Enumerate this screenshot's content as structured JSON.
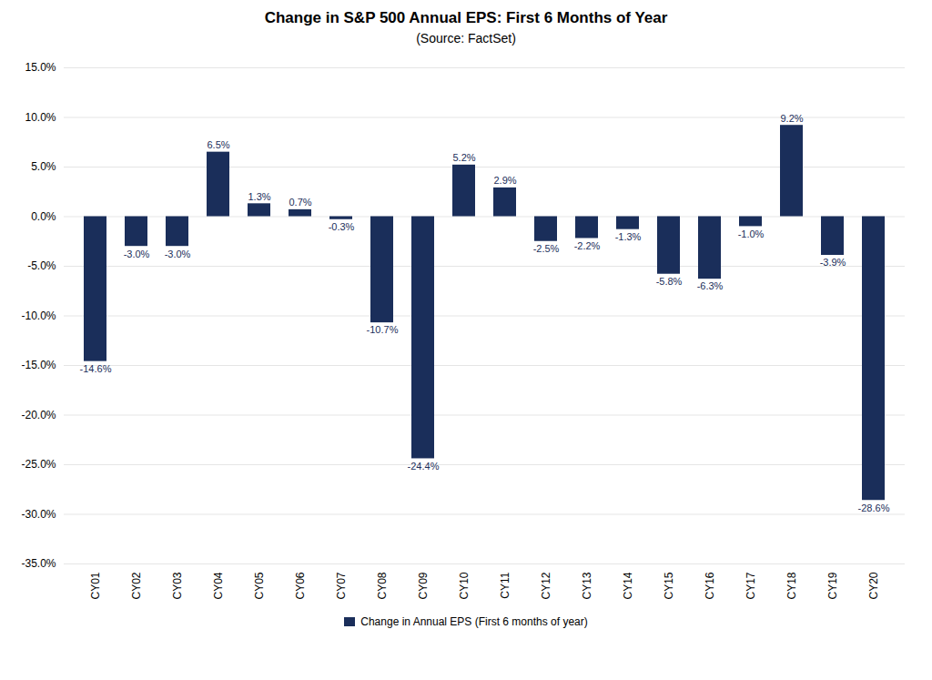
{
  "chart_data": {
    "type": "bar",
    "title": "Change in S&P 500 Annual EPS: First 6 Months of Year",
    "subtitle": "(Source: FactSet)",
    "categories": [
      "CY01",
      "CY02",
      "CY03",
      "CY04",
      "CY05",
      "CY06",
      "CY07",
      "CY08",
      "CY09",
      "CY10",
      "CY11",
      "CY12",
      "CY13",
      "CY14",
      "CY15",
      "CY16",
      "CY17",
      "CY18",
      "CY19",
      "CY20"
    ],
    "series": [
      {
        "name": "Change in Annual EPS (First 6 months of year)",
        "color": "#1a2e5a",
        "values": [
          -14.6,
          -3.0,
          -3.0,
          6.5,
          1.3,
          0.7,
          -0.3,
          -10.7,
          -24.4,
          5.2,
          2.9,
          -2.5,
          -2.2,
          -1.3,
          -5.8,
          -6.3,
          -1.0,
          9.2,
          -3.9,
          -28.6
        ],
        "value_labels": [
          "-14.6%",
          "-3.0%",
          "-3.0%",
          "6.5%",
          "1.3%",
          "0.7%",
          "-0.3%",
          "-10.7%",
          "-24.4%",
          "5.2%",
          "2.9%",
          "-2.5%",
          "-2.2%",
          "-1.3%",
          "-5.8%",
          "-6.3%",
          "-1.0%",
          "9.2%",
          "-3.9%",
          "-28.6%"
        ]
      }
    ],
    "ylim": [
      -35,
      15
    ],
    "yticks": [
      {
        "value": -35,
        "label": "-35.0%"
      },
      {
        "value": -30,
        "label": "-30.0%"
      },
      {
        "value": -25,
        "label": "-25.0%"
      },
      {
        "value": -20,
        "label": "-20.0%"
      },
      {
        "value": -15,
        "label": "-15.0%"
      },
      {
        "value": -10,
        "label": "-10.0%"
      },
      {
        "value": -5,
        "label": "-5.0%"
      },
      {
        "value": 0,
        "label": "0.0%"
      },
      {
        "value": 5,
        "label": "5.0%"
      },
      {
        "value": 10,
        "label": "10.0%"
      },
      {
        "value": 15,
        "label": "15.0%"
      }
    ],
    "grid": true,
    "data_labels": true,
    "legend": "bottom"
  }
}
